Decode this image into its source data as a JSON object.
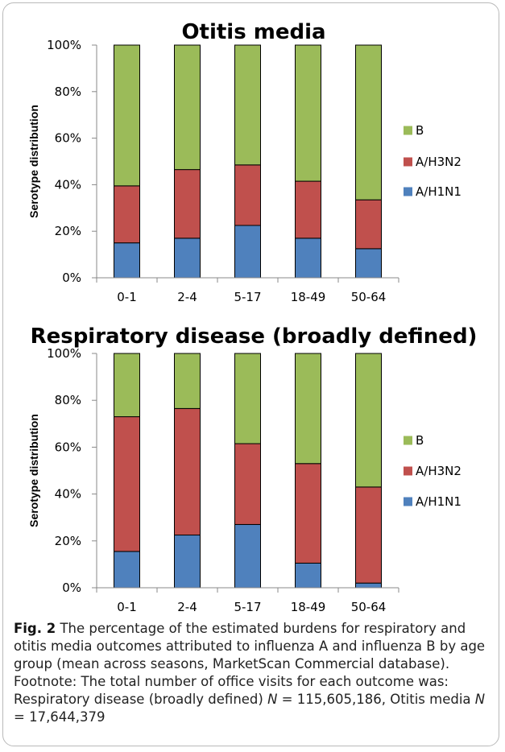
{
  "chart_data": [
    {
      "type": "bar",
      "stacked": true,
      "title": "Otitis media",
      "ylabel": "Serotype distribution",
      "xlabel": "",
      "ylim": [
        0,
        100
      ],
      "yticks": [
        "0%",
        "20%",
        "40%",
        "60%",
        "80%",
        "100%"
      ],
      "categories": [
        "0-1",
        "2-4",
        "5-17",
        "18-49",
        "50-64"
      ],
      "series": [
        {
          "name": "A/H1N1",
          "color": "#4f81bd",
          "values": [
            15,
            17,
            22.5,
            17,
            12.5
          ]
        },
        {
          "name": "A/H3N2",
          "color": "#c0504d",
          "values": [
            24.5,
            29.5,
            26,
            24.5,
            21
          ]
        },
        {
          "name": "B",
          "color": "#9bbb59",
          "values": [
            60.5,
            53.5,
            51.5,
            58.5,
            66.5
          ]
        }
      ],
      "legend": {
        "position": "right",
        "order": [
          "B",
          "A/H3N2",
          "A/H1N1"
        ]
      },
      "grid": false
    },
    {
      "type": "bar",
      "stacked": true,
      "title": "Respiratory disease (broadly defined)",
      "ylabel": "Serotype distribution",
      "xlabel": "",
      "ylim": [
        0,
        100
      ],
      "yticks": [
        "0%",
        "20%",
        "40%",
        "60%",
        "80%",
        "100%"
      ],
      "categories": [
        "0-1",
        "2-4",
        "5-17",
        "18-49",
        "50-64"
      ],
      "series": [
        {
          "name": "A/H1N1",
          "color": "#4f81bd",
          "values": [
            15.5,
            22.5,
            27,
            10.5,
            2
          ]
        },
        {
          "name": "A/H3N2",
          "color": "#c0504d",
          "values": [
            57.5,
            54,
            34.5,
            42.5,
            41
          ]
        },
        {
          "name": "B",
          "color": "#9bbb59",
          "values": [
            27,
            23.5,
            38.5,
            47,
            57
          ]
        }
      ],
      "legend": {
        "position": "right",
        "order": [
          "B",
          "A/H3N2",
          "A/H1N1"
        ]
      },
      "grid": false
    }
  ],
  "caption": {
    "label": "Fig. 2",
    "text_1": " The percentage of the estimated burdens for respiratory and otitis media outcomes attributed to influenza A and influenza B by age group (mean across seasons, MarketScan Commercial database). Footnote: The total number of office visits for each outcome was: Respiratory disease (broadly defined) ",
    "n_symbol_1": "N",
    "text_2": " = 115,605,186, Otitis media ",
    "n_symbol_2": "N",
    "text_3": " = 17,644,379"
  }
}
